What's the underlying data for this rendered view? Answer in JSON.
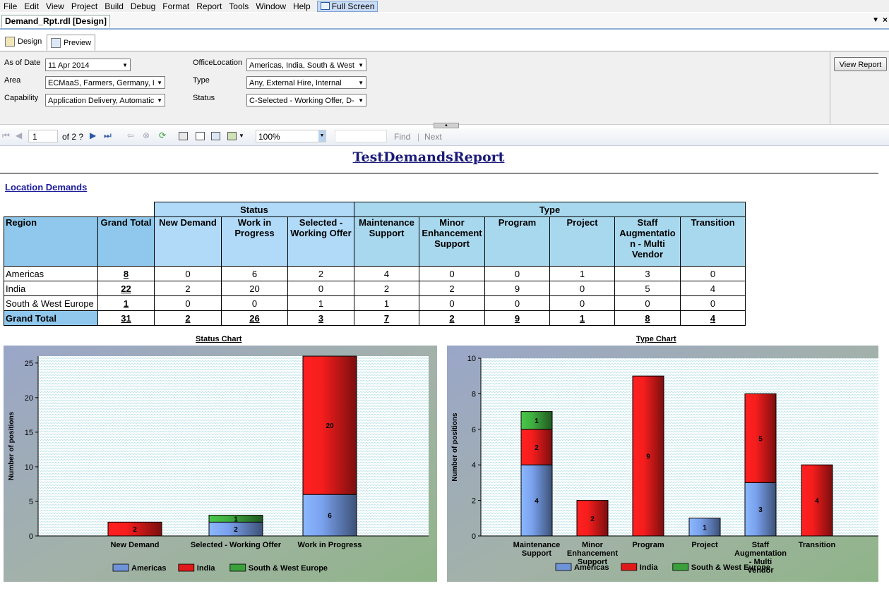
{
  "menubar": {
    "items": [
      "File",
      "Edit",
      "View",
      "Project",
      "Build",
      "Debug",
      "Format",
      "Report",
      "Tools",
      "Window",
      "Help"
    ],
    "fullscreen_label": "Full Screen"
  },
  "doc_tab": {
    "label": "Demand_Rpt.rdl [Design]"
  },
  "design_tabs": {
    "design": "Design",
    "preview": "Preview"
  },
  "params": {
    "as_of_date": {
      "label": "As of Date",
      "value": "11 Apr 2014"
    },
    "area": {
      "label": "Area",
      "value": "ECMaaS, Farmers, Germany, I"
    },
    "capability": {
      "label": "Capability",
      "value": "Application Delivery, Automatic"
    },
    "office_location": {
      "label": "OfficeLocation",
      "value": "Americas, India, South & West"
    },
    "type": {
      "label": "Type",
      "value": "Any, External Hire, Internal"
    },
    "status": {
      "label": "Status",
      "value": "C-Selected - Working Offer, D-"
    },
    "view_report_label": "View Report"
  },
  "toolbar": {
    "page_value": "1",
    "page_of": "of  2 ?",
    "zoom_value": "100%",
    "find_label": "Find",
    "separator": "|",
    "next_label": "Next"
  },
  "report": {
    "title": "TestDemandsReport",
    "section_link": "Location Demands"
  },
  "table": {
    "group_status": "Status",
    "group_type": "Type",
    "headers": [
      "Region",
      "Grand Total",
      "New Demand",
      "Work in Progress",
      "Selected - Working Offer",
      "Maintenance Support",
      "Minor Enhancement Support",
      "Program",
      "Project",
      "Staff Augmentatio n - Multi Vendor",
      "Transition"
    ],
    "rows": [
      {
        "region": "Americas",
        "cells": [
          "8",
          "0",
          "6",
          "2",
          "4",
          "0",
          "0",
          "1",
          "3",
          "0"
        ]
      },
      {
        "region": "India",
        "cells": [
          "22",
          "2",
          "20",
          "0",
          "2",
          "2",
          "9",
          "0",
          "5",
          "4"
        ]
      },
      {
        "region": "South & West Europe",
        "cells": [
          "1",
          "0",
          "0",
          "1",
          "1",
          "0",
          "0",
          "0",
          "0",
          "0"
        ]
      }
    ],
    "total_row": {
      "region": "Grand Total",
      "cells": [
        "31",
        "2",
        "26",
        "3",
        "7",
        "2",
        "9",
        "1",
        "8",
        "4"
      ]
    }
  },
  "chart_data": [
    {
      "type": "bar",
      "stacked": true,
      "title": "Status Chart",
      "ylabel": "Number of positions",
      "xlabel": "",
      "categories": [
        "New Demand",
        "Selected - Working Offer",
        "Work in Progress"
      ],
      "series": [
        {
          "name": "Americas",
          "color": "#6f93d8",
          "values": [
            0,
            2,
            6
          ]
        },
        {
          "name": "India",
          "color": "#e01a1a",
          "values": [
            2,
            0,
            20
          ]
        },
        {
          "name": "South & West Europe",
          "color": "#3aa03a",
          "values": [
            0,
            1,
            0
          ]
        }
      ],
      "ylim": [
        0,
        26
      ],
      "yticks": [
        0,
        5,
        10,
        15,
        20,
        25
      ],
      "legend": "bottom",
      "grid": false
    },
    {
      "type": "bar",
      "stacked": true,
      "title": "Type Chart",
      "ylabel": "Number of positions",
      "xlabel": "",
      "categories": [
        "Maintenance Support",
        "Minor Enhancement Support",
        "Program",
        "Project",
        "Staff Augmentation - Multi Vendor",
        "Transition"
      ],
      "series": [
        {
          "name": "Americas",
          "color": "#6f93d8",
          "values": [
            4,
            0,
            0,
            1,
            3,
            0
          ]
        },
        {
          "name": "India",
          "color": "#e01a1a",
          "values": [
            2,
            2,
            9,
            0,
            5,
            4
          ]
        },
        {
          "name": "South & West Europe",
          "color": "#3aa03a",
          "values": [
            1,
            0,
            0,
            0,
            0,
            0
          ]
        }
      ],
      "ylim": [
        0,
        10
      ],
      "yticks": [
        0,
        2,
        4,
        6,
        8,
        10
      ],
      "legend": "bottom",
      "grid": false
    }
  ]
}
